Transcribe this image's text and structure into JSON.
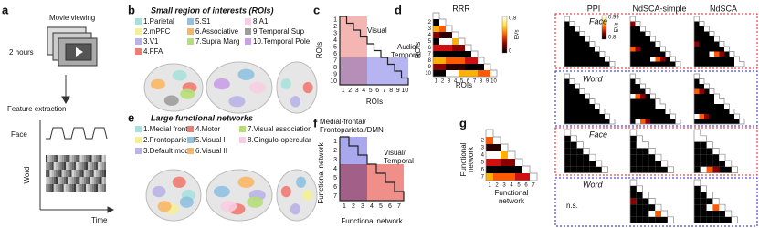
{
  "a": {
    "label": "a",
    "movie": "Movie viewing",
    "hours": "2 hours",
    "feature": "Feature extraction",
    "face": "Face",
    "word": "Word",
    "time": "Time"
  },
  "b": {
    "label": "b",
    "title": "Small region of interests (ROIs)",
    "items": [
      "1.Parietal",
      "2.mPFC",
      "3.V1",
      "4.FFA",
      "5.S1",
      "6.Associative",
      "7.Supra Marg",
      "8.A1",
      "9.Temporal Sup",
      "10.Temporal Pole"
    ]
  },
  "c": {
    "label": "c",
    "visual": "Visual",
    "audio": [
      "Audio/",
      "Temporal"
    ],
    "axis": "ROIs",
    "ticks": [
      1,
      2,
      3,
      4,
      5,
      6,
      7,
      8,
      9,
      10
    ]
  },
  "d": {
    "label": "d",
    "columns": [
      "RRR",
      "PPI",
      "NdSCA-simple",
      "NdSCA"
    ],
    "cb1": {
      "max": "0.8",
      "min": "0",
      "name": "EVs"
    },
    "cb2": {
      "max": "0.99",
      "min": "0.8",
      "name": "EVs"
    },
    "face": "Face",
    "word": "Word",
    "axis": "ROIs",
    "y_ticks": [
      2,
      3,
      4,
      5,
      6,
      7,
      8,
      9,
      10
    ],
    "x_ticks": [
      1,
      2,
      3,
      4,
      5,
      6,
      7,
      8,
      9,
      10
    ]
  },
  "e": {
    "label": "e",
    "title": "Large functional networks",
    "items": [
      "1.Medial frontal",
      "2.Frontoparietal",
      "3.Default mode",
      "4.Motor",
      "5.Visual I",
      "6.Visual II",
      "7.Visual association",
      "8.Cingulo-opercular"
    ]
  },
  "f": {
    "label": "f",
    "dmn": [
      "Medial-frontal/",
      "Frontoparietal/DMN"
    ],
    "visual": [
      "Visual/",
      "Temporal"
    ],
    "axis": "Functional network",
    "ticks": [
      1,
      2,
      3,
      4,
      5,
      6,
      7
    ]
  },
  "g": {
    "label": "g",
    "face": "Face",
    "word": "Word",
    "ns": "n.s.",
    "axis": [
      "Functional",
      "network"
    ],
    "y_ticks": [
      2,
      3,
      4,
      5,
      6,
      7
    ],
    "x_ticks": [
      1,
      2,
      3,
      4,
      5,
      6,
      7
    ]
  }
}
